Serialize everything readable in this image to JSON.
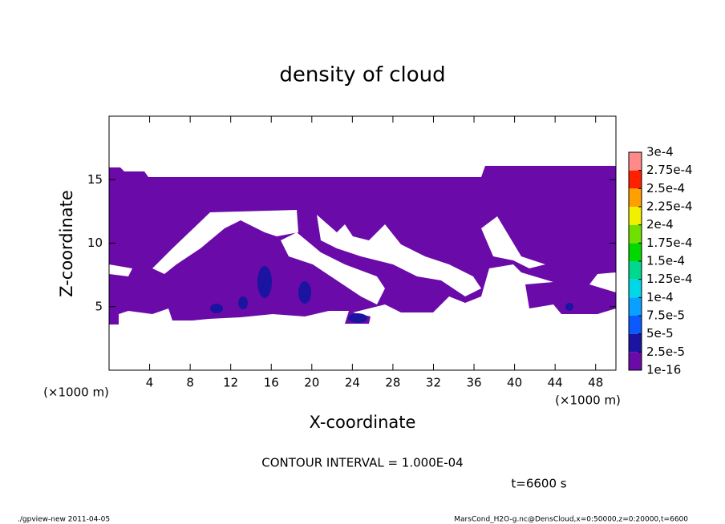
{
  "chart_data": {
    "type": "contour",
    "title": "density of cloud",
    "x_label": "X-coordinate",
    "y_label": "Z-coordinate",
    "x_unit": "(×1000 m)",
    "xlim": [
      0,
      50
    ],
    "xticks": [
      4,
      8,
      12,
      16,
      20,
      24,
      28,
      32,
      36,
      40,
      44,
      48
    ],
    "ylim": [
      0,
      20
    ],
    "yticks": [
      5,
      10,
      15
    ],
    "levels": [
      {
        "value": 1e-16,
        "label": "1e-16"
      },
      {
        "value": 2.5e-05,
        "label": "2.5e-5"
      },
      {
        "value": 5e-05,
        "label": "5e-5"
      },
      {
        "value": 7.5e-05,
        "label": "7.5e-5"
      },
      {
        "value": 0.0001,
        "label": "1e-4"
      },
      {
        "value": 0.000125,
        "label": "1.25e-4"
      },
      {
        "value": 0.00015,
        "label": "1.5e-4"
      },
      {
        "value": 0.000175,
        "label": "1.75e-4"
      },
      {
        "value": 0.0002,
        "label": "2e-4"
      },
      {
        "value": 0.000225,
        "label": "2.25e-4"
      },
      {
        "value": 0.00025,
        "label": "2.5e-4"
      },
      {
        "value": 0.000275,
        "label": "2.75e-4"
      },
      {
        "value": 0.0003,
        "label": "3e-4"
      }
    ],
    "level_colors": [
      "#6a0aa8",
      "#1a14a0",
      "#0a5aff",
      "#0aa0ff",
      "#00d8e8",
      "#00d890",
      "#00d800",
      "#70e000",
      "#f0f000",
      "#ffa000",
      "#ff2000",
      "#ff8a8a"
    ],
    "contour_interval": "CONTOUR INTERVAL = 1.000E-04",
    "time": "t=6600 s",
    "footer_left": "./gpview-new  2011-04-05",
    "footer_right": "MarsCond_H2O-g.nc@DensCloud,x=0:50000,z=0:20000,t=6600"
  }
}
